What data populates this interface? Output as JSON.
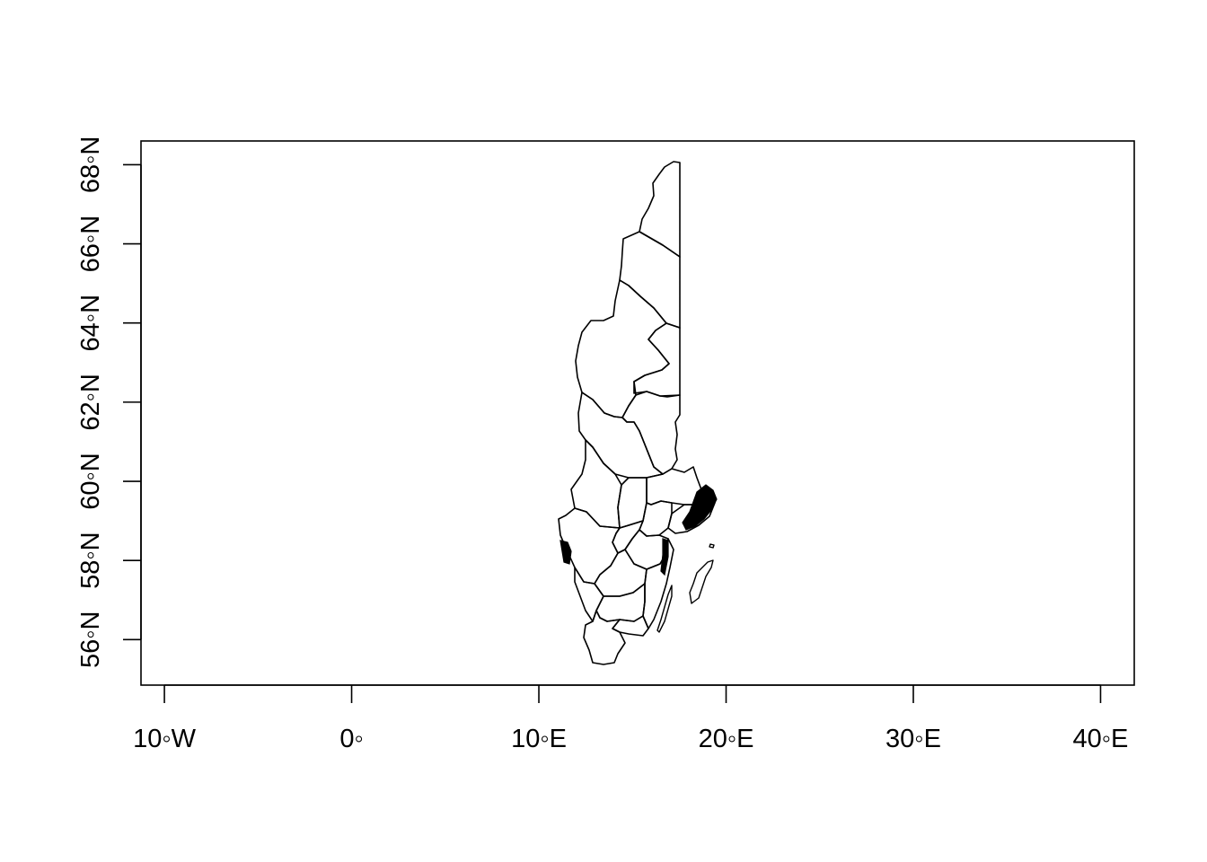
{
  "map": {
    "x_axis": {
      "ticks": [
        -10,
        0,
        10,
        20,
        30,
        40
      ],
      "tick_labels": [
        "10◦W",
        "0◦",
        "10◦E",
        "20◦E",
        "30◦E",
        "40◦E"
      ]
    },
    "y_axis": {
      "ticks": [
        56,
        58,
        60,
        62,
        64,
        66,
        68
      ],
      "tick_labels": [
        "56◦N",
        "58◦N",
        "60◦N",
        "62◦N",
        "64◦N",
        "66◦N",
        "68◦N"
      ]
    },
    "xlim": [
      -11.25,
      41.8
    ],
    "ylim": [
      54.85,
      68.6
    ],
    "colors": {
      "stroke": "#000000",
      "background": "#ffffff"
    }
  }
}
